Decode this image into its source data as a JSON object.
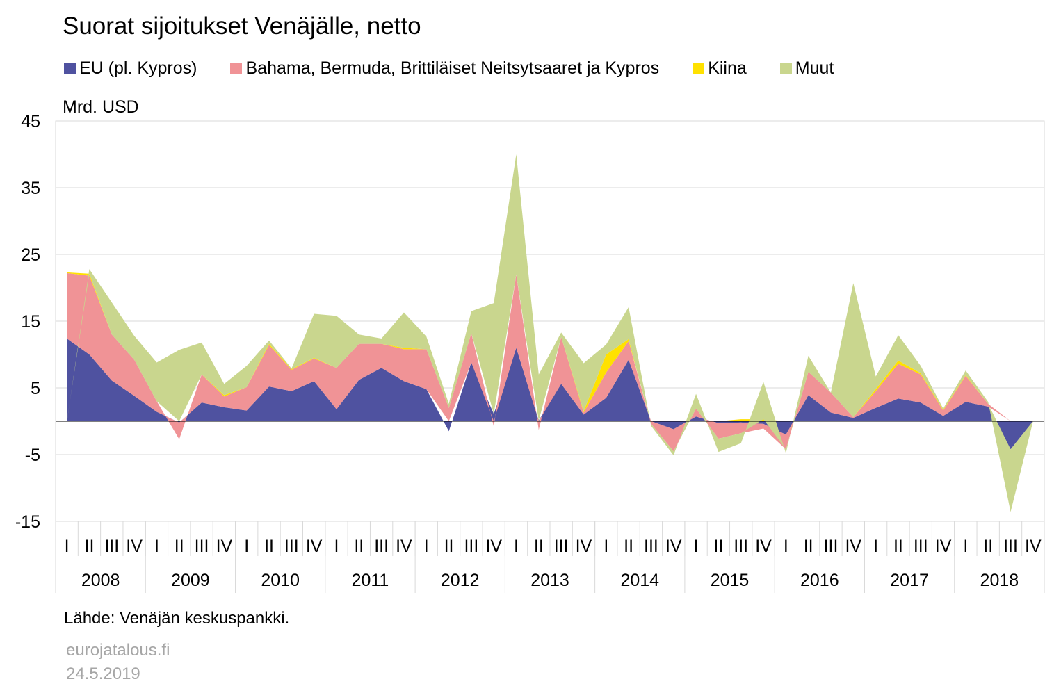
{
  "title": "Suorat sijoitukset Venäjälle, netto",
  "unit_label": "Mrd. USD",
  "source": "Lähde: Venäjän keskuspankki.",
  "site": "eurojatalous.fi",
  "date": "24.5.2019",
  "chart_data": {
    "type": "area",
    "stacked": true,
    "title": "Suorat sijoitukset Venäjälle, netto",
    "ylabel": "Mrd. USD",
    "ylim": [
      -15,
      45
    ],
    "yticks": [
      -15,
      -5,
      5,
      15,
      25,
      35,
      45
    ],
    "grid": true,
    "legend_position": "top",
    "quarters": [
      "I",
      "II",
      "III",
      "IV"
    ],
    "years": [
      "2008",
      "2009",
      "2010",
      "2011",
      "2012",
      "2013",
      "2014",
      "2015",
      "2016",
      "2017",
      "2018"
    ],
    "series": [
      {
        "name": "EU (pl. Kypros)",
        "color": "#4f52a0",
        "values": [
          12.4,
          10,
          6.1,
          3.8,
          1.4,
          -0.2,
          2.8,
          2.1,
          1.6,
          5.2,
          4.5,
          6,
          1.8,
          6.2,
          8,
          6,
          4.8,
          -1.5,
          8.8,
          1.1,
          11,
          0.1,
          5.6,
          1,
          3.5,
          9.2,
          0,
          -1.2,
          0.7,
          -0.3,
          -0.2,
          -0.4,
          -2,
          3.9,
          1.3,
          0.5,
          2,
          3.4,
          2.8,
          0.8,
          2.9,
          2.2,
          -4.2,
          0
        ]
      },
      {
        "name": "Bahama, Bermuda, Brittiläiset Neitsytsaaret ja Kypros",
        "color": "#f09396",
        "values": [
          9.8,
          11.8,
          6.9,
          5.4,
          1.6,
          -2.5,
          4.2,
          1.6,
          3.5,
          6.2,
          3.2,
          3.4,
          6.2,
          5.4,
          3.6,
          4.8,
          6,
          2,
          4.4,
          -0.8,
          11,
          -1.3,
          7,
          0.3,
          3.8,
          2.8,
          -0.4,
          -3.3,
          1.2,
          -2.3,
          -1.6,
          -0.7,
          -2.2,
          3.5,
          3,
          0.1,
          2.5,
          5.2,
          4.2,
          0.8,
          3.9,
          0.4,
          0,
          0
        ]
      },
      {
        "name": "Kiina",
        "color": "#ffe100",
        "values": [
          0.1,
          0.3,
          0,
          0,
          0,
          0,
          0,
          0.2,
          0,
          0.2,
          0.1,
          0.1,
          0,
          0,
          0,
          0.2,
          0,
          0,
          0,
          0,
          0,
          0,
          0,
          0.2,
          2.7,
          0.3,
          0,
          0,
          0,
          0,
          0.3,
          0.3,
          0,
          0,
          0,
          0,
          0.3,
          0.5,
          0.2,
          0.1,
          0.1,
          0,
          0,
          0
        ]
      },
      {
        "name": "Muut",
        "color": "#c9d68e",
        "values": [
          -0.1,
          0.7,
          4.8,
          3.6,
          5.8,
          10.7,
          4.8,
          1.7,
          3.2,
          0.5,
          0.1,
          6.6,
          7.8,
          1.4,
          0.8,
          5.3,
          1.9,
          0.6,
          3.3,
          16.6,
          18,
          6.9,
          0.7,
          7.2,
          1.5,
          4.8,
          -0.3,
          -0.6,
          2.2,
          -2,
          -1.5,
          5.6,
          -0.6,
          2.4,
          0,
          20.1,
          1.9,
          3.8,
          1.1,
          0.2,
          0.7,
          0.3,
          -9.4,
          0
        ]
      }
    ]
  }
}
